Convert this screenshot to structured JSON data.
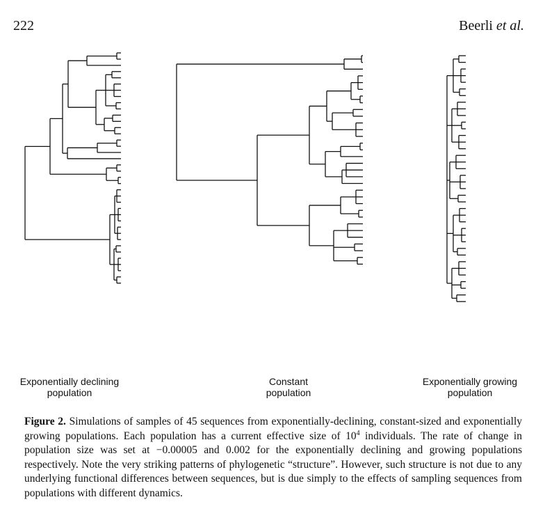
{
  "page": {
    "number": "222",
    "running_head": {
      "authors": "Beerli",
      "etal": "et al."
    }
  },
  "figure": {
    "panel_labels": [
      {
        "line1": "Exponentially declining",
        "line2": "population"
      },
      {
        "line1": "Constant",
        "line2": "population"
      },
      {
        "line1": "Exponentially growing",
        "line2": "population"
      }
    ],
    "caption": {
      "label": "Figure 2.",
      "text_a": " Simulations of samples of 45 sequences from exponentially-declining, constant-sized and exponentially growing populations. Each population has a current effective size of 10",
      "superscript": "4",
      "text_b": " individuals. The rate of change in population size was set at −0.00005 and 0.002 for the exponentially declining and growing populations respectively. Note the very striking patterns of phylogenetic “structure”. However, such structure is not due to any underlying functional differences between sequences, but is due simply to the effects of sampling sequences from populations with different dynamics."
    }
  }
}
